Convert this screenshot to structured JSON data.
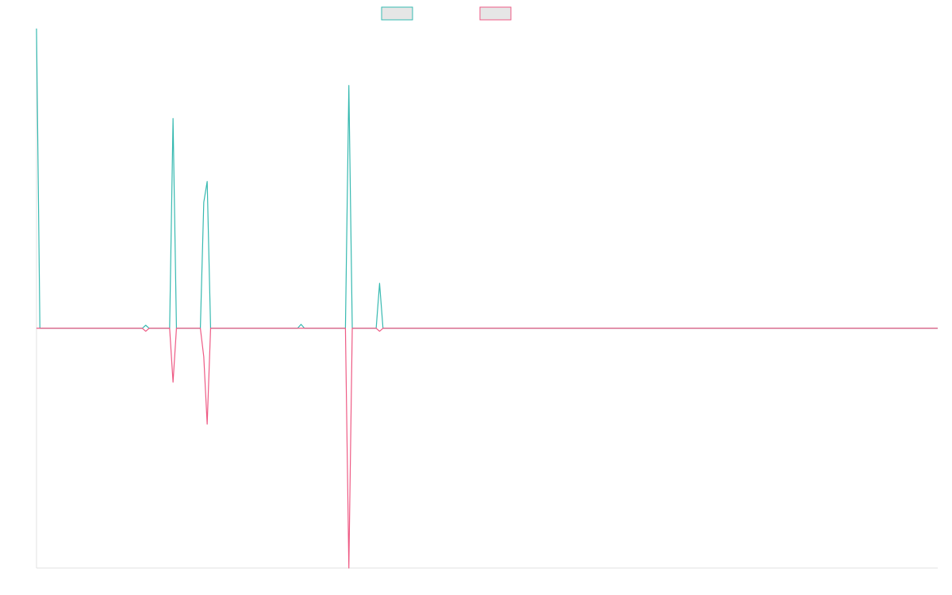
{
  "chart_data": {
    "type": "line",
    "xlim": [
      0,
      264
    ],
    "ylim": [
      -80,
      100
    ],
    "series": [
      {
        "color": "#36b9b0",
        "x": [
          0,
          1,
          31,
          32,
          33,
          39,
          40,
          41,
          48,
          49,
          50,
          51,
          76.5,
          77.5,
          78.5,
          90.5,
          91.5,
          92.5,
          99.5,
          100.5,
          101.5,
          264
        ],
        "values": [
          100,
          0,
          0,
          1,
          0,
          0,
          70,
          0,
          0,
          42,
          49,
          0,
          0,
          1.3,
          0,
          0,
          81,
          0,
          0,
          15,
          0,
          0
        ]
      },
      {
        "color": "#ee5a84",
        "x": [
          0,
          31,
          32,
          33,
          39,
          40,
          41,
          48,
          49,
          50,
          51,
          90.5,
          91.5,
          92.5,
          99.5,
          100.5,
          101.5,
          264
        ],
        "values": [
          0,
          0,
          -1,
          0,
          0,
          -18,
          0,
          0,
          -9.5,
          -32,
          0,
          0,
          -80,
          0,
          0,
          -1,
          0,
          0
        ]
      }
    ]
  }
}
